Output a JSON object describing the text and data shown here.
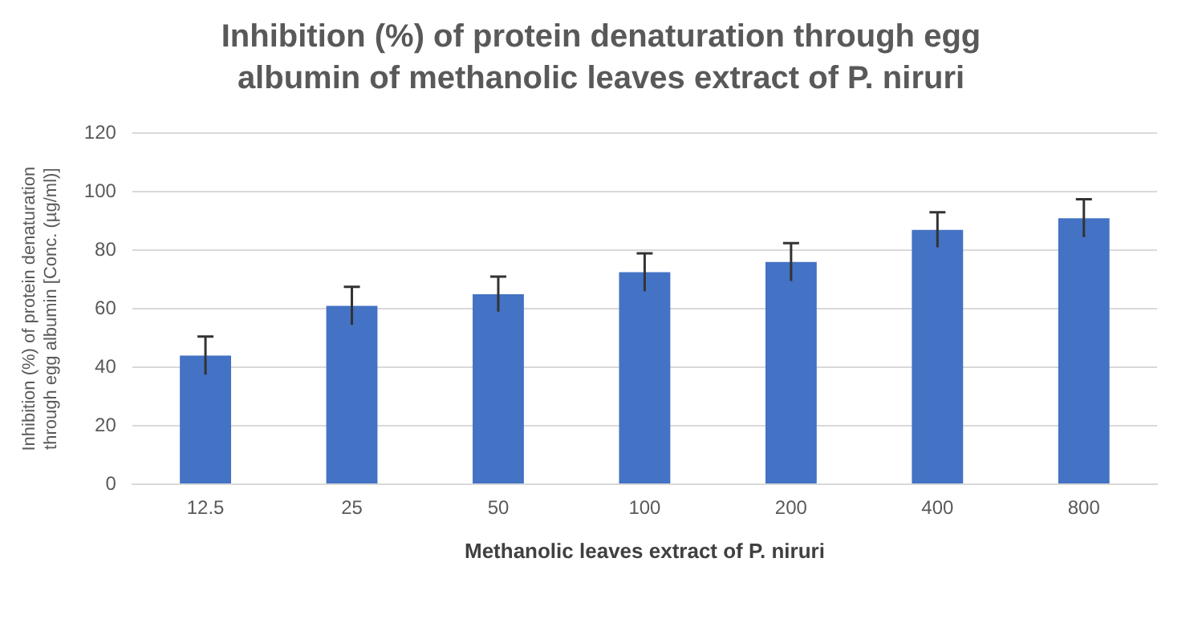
{
  "chart_data": {
    "type": "bar",
    "title": "Inhibition (%) of protein denaturation through egg albumin of methanolic leaves extract of P. niruri",
    "xlabel": "Methanolic leaves extract of P. niruri",
    "ylabel": "Inhibition (%) of protein denaturation through egg albumin [Conc. (µg/ml)]",
    "categories": [
      "12.5",
      "25",
      "50",
      "100",
      "200",
      "400",
      "800"
    ],
    "values": [
      44,
      61,
      65,
      72.5,
      76,
      87,
      91
    ],
    "errors": [
      6.5,
      6.5,
      6,
      6.5,
      6.5,
      6,
      6.5
    ],
    "color": "#4472c4",
    "ylim": [
      0,
      120
    ],
    "yticks": [
      0,
      20,
      40,
      60,
      80,
      100,
      120
    ],
    "grid": "y",
    "legend": false
  }
}
